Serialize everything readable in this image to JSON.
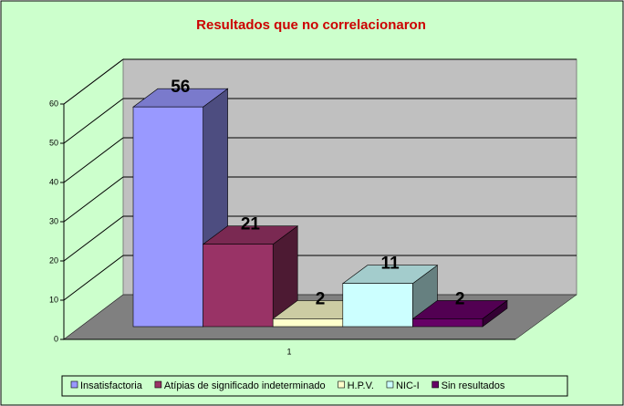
{
  "chart_data": {
    "type": "bar3d",
    "title": "Resultados que no correlacionaron",
    "categories": [
      "1"
    ],
    "series": [
      {
        "name": "Insatisfactoria",
        "color": "#9999ff",
        "values": [
          56
        ]
      },
      {
        "name": "Atípias de significado indeterminado",
        "color": "#993366",
        "values": [
          21
        ]
      },
      {
        "name": "H.P.V.",
        "color": "#ffffcc",
        "values": [
          2
        ]
      },
      {
        "name": "NIC-I",
        "color": "#ccffff",
        "values": [
          11
        ]
      },
      {
        "name": "Sin resultados",
        "color": "#660066",
        "values": [
          2
        ]
      }
    ],
    "ylim": [
      0,
      60
    ],
    "yticks": [
      0,
      10,
      20,
      30,
      40,
      50,
      60
    ],
    "grid": true,
    "legend": "bottom"
  }
}
